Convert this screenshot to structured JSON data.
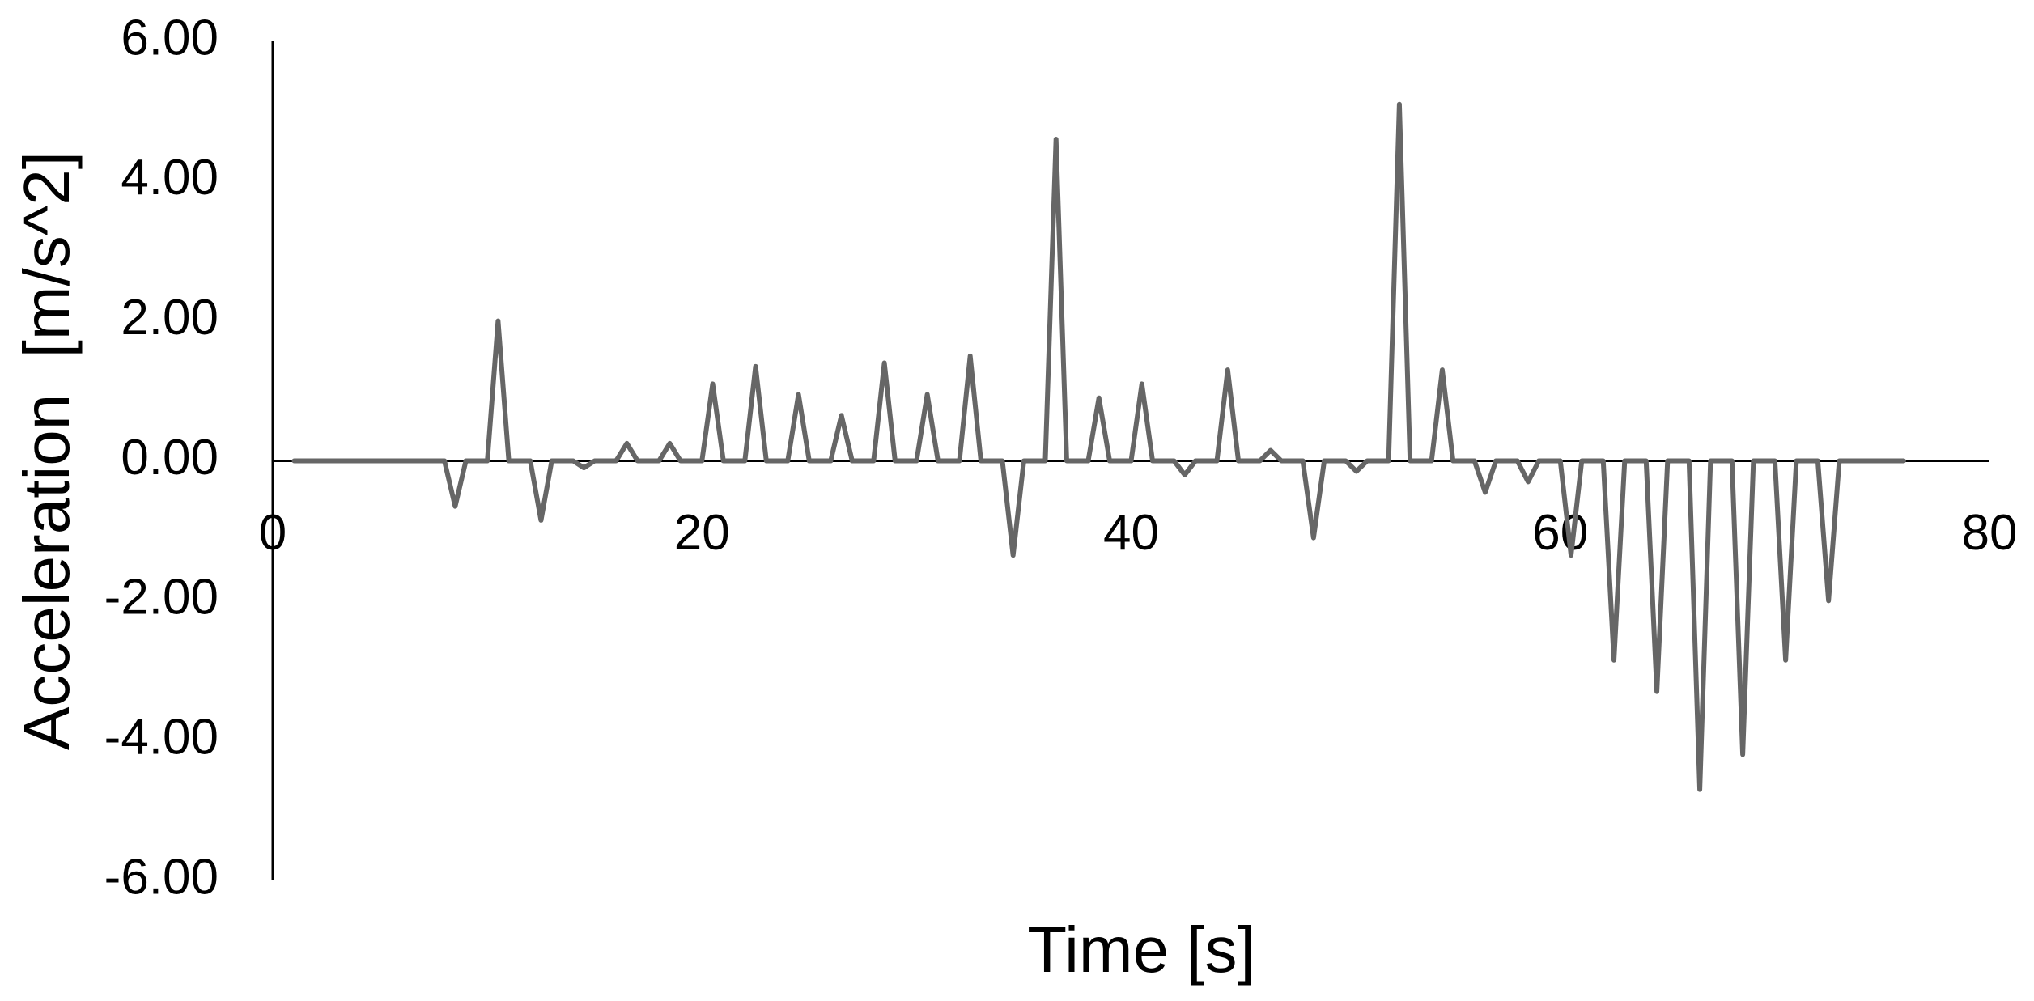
{
  "chart_data": {
    "type": "line",
    "xlabel": "Time [s]",
    "ylabel": "Acceleration  [m/s^2]",
    "xlim": [
      0,
      80
    ],
    "xticks": [
      0,
      20,
      40,
      60,
      80
    ],
    "ylim": [
      -6,
      6
    ],
    "yticks": [
      {
        "value": -6,
        "label": "-6.00"
      },
      {
        "value": -4,
        "label": "-4.00"
      },
      {
        "value": -2,
        "label": "-2.00"
      },
      {
        "value": 0,
        "label": "0.00"
      },
      {
        "value": 2,
        "label": "2.00"
      },
      {
        "value": 4,
        "label": "4.00"
      },
      {
        "value": 6,
        "label": "6.00"
      }
    ],
    "grid": false,
    "series": [
      {
        "color": "#666666",
        "x": [
          1,
          8,
          8.5,
          9,
          10,
          10.5,
          11,
          12,
          12.5,
          13,
          14,
          14.5,
          15,
          16,
          16.5,
          17,
          18,
          18.5,
          19,
          20,
          20.5,
          21,
          22,
          22.5,
          23,
          24,
          24.5,
          25,
          26,
          26.5,
          27,
          28,
          28.5,
          29,
          30,
          30.5,
          31,
          32,
          32.5,
          33,
          34,
          34.5,
          35,
          36,
          36.5,
          37,
          38,
          38.5,
          39,
          40,
          40.5,
          41,
          42,
          42.5,
          43,
          44,
          44.5,
          45,
          46,
          46.5,
          47,
          48,
          48.5,
          49,
          50,
          50.5,
          51,
          52,
          52.5,
          53,
          54,
          54.5,
          55,
          56,
          56.5,
          57,
          58,
          58.5,
          59,
          60,
          60.5,
          61,
          62,
          62.5,
          63,
          64,
          64.5,
          65,
          66,
          66.5,
          67,
          68,
          68.5,
          69,
          70,
          70.5,
          71,
          72,
          72.5,
          73,
          76
        ],
        "values": [
          0,
          0,
          -0.65,
          0,
          0,
          2.0,
          0,
          0,
          -0.85,
          0,
          0,
          -0.1,
          0,
          0,
          0.25,
          0,
          0,
          0.25,
          0,
          0,
          1.1,
          0,
          0,
          1.35,
          0,
          0,
          0.95,
          0,
          0,
          0.65,
          0,
          0,
          1.4,
          0,
          0,
          0.95,
          0,
          0,
          1.5,
          0,
          0,
          -1.35,
          0,
          0,
          4.6,
          0,
          0,
          0.9,
          0,
          0,
          1.1,
          0,
          0,
          -0.2,
          0,
          0,
          1.3,
          0,
          0,
          0.15,
          0,
          0,
          -1.1,
          0,
          0,
          -0.15,
          0,
          0,
          5.1,
          0,
          0,
          1.3,
          0,
          0,
          -0.45,
          0,
          0,
          -0.3,
          0,
          0,
          -1.35,
          0,
          0,
          -2.85,
          0,
          0,
          -3.3,
          0,
          0,
          -4.7,
          0,
          0,
          -4.2,
          0,
          0,
          -2.85,
          0,
          0,
          -2.0,
          0,
          0
        ]
      }
    ]
  }
}
